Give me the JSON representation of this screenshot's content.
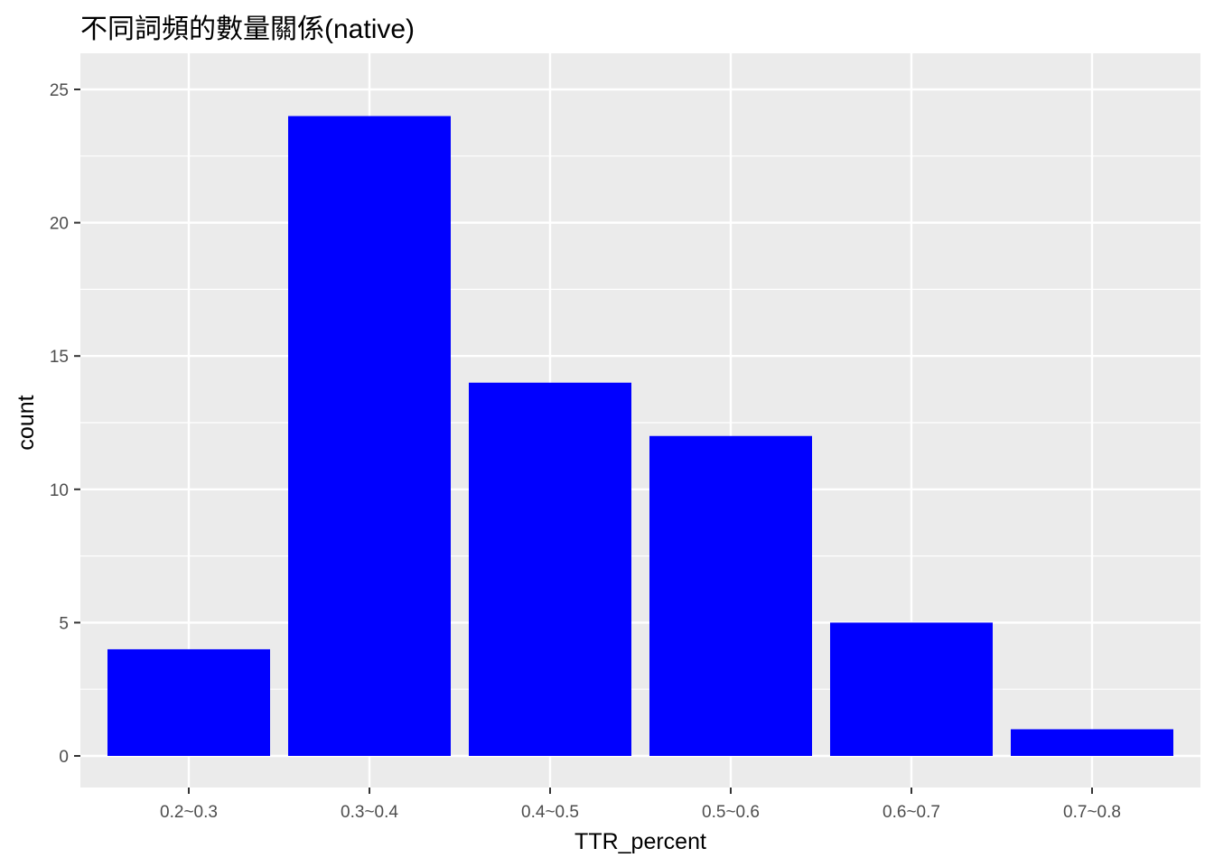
{
  "chart_data": {
    "type": "bar",
    "title": "不同詞頻的數量關係(native)",
    "xlabel": "TTR_percent",
    "ylabel": "count",
    "categories": [
      "0.2~0.3",
      "0.3~0.4",
      "0.4~0.5",
      "0.5~0.6",
      "0.6~0.7",
      "0.7~0.8"
    ],
    "values": [
      4,
      24,
      14,
      12,
      5,
      1
    ],
    "ylim": [
      0,
      25
    ],
    "yticks": [
      0,
      5,
      10,
      15,
      20,
      25
    ],
    "bar_color": "#0000ff",
    "panel_background": "#ebebeb",
    "grid_color": "#ffffff",
    "grid": true,
    "legend": "none"
  }
}
